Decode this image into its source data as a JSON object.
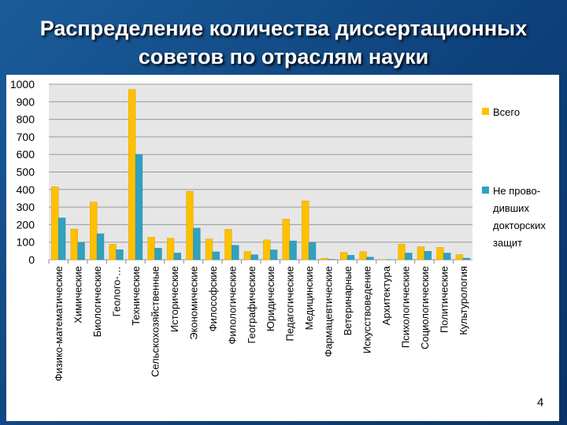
{
  "slide": {
    "title_line1": "Распределение количества диссертационных",
    "title_line2": "советов по отраслям науки",
    "page_number": "4"
  },
  "chart_data": {
    "type": "bar",
    "title": "Распределение количества диссертационных советов по отраслям науки",
    "categories": [
      "Физико-математические",
      "Химические",
      "Биологические",
      "Геолого-…",
      "Технические",
      "Сельскохозяйственные",
      "Исторические",
      "Экономические",
      "Философские",
      "Филологические",
      "Географические",
      "Юридические",
      "Педагогические",
      "Медицинские",
      "Фармацевтические",
      "Ветеринарные",
      "Искусствоведение",
      "Архитектура",
      "Психологические",
      "Социологические",
      "Политические",
      "Культурология"
    ],
    "series": [
      {
        "name": "Всего",
        "color": "#FFC000",
        "values": [
          415,
          175,
          328,
          88,
          970,
          128,
          122,
          390,
          118,
          173,
          47,
          113,
          231,
          335,
          8,
          42,
          46,
          1,
          89,
          74,
          70,
          29
        ]
      },
      {
        "name": "Не прово-дивших докторских защит",
        "legend_lines": [
          "Не прово-",
          "дивших",
          "докторских",
          "защит"
        ],
        "color": "#31A1C0",
        "values": [
          238,
          97,
          148,
          57,
          600,
          66,
          38,
          180,
          45,
          82,
          28,
          56,
          107,
          98,
          2,
          25,
          15,
          1,
          38,
          48,
          38,
          9
        ]
      }
    ],
    "ylim": [
      0,
      1000
    ],
    "yticks": [
      0,
      100,
      200,
      300,
      400,
      500,
      600,
      700,
      800,
      900,
      1000
    ],
    "grid": true,
    "legend": "right",
    "xlabel": "",
    "ylabel": ""
  }
}
